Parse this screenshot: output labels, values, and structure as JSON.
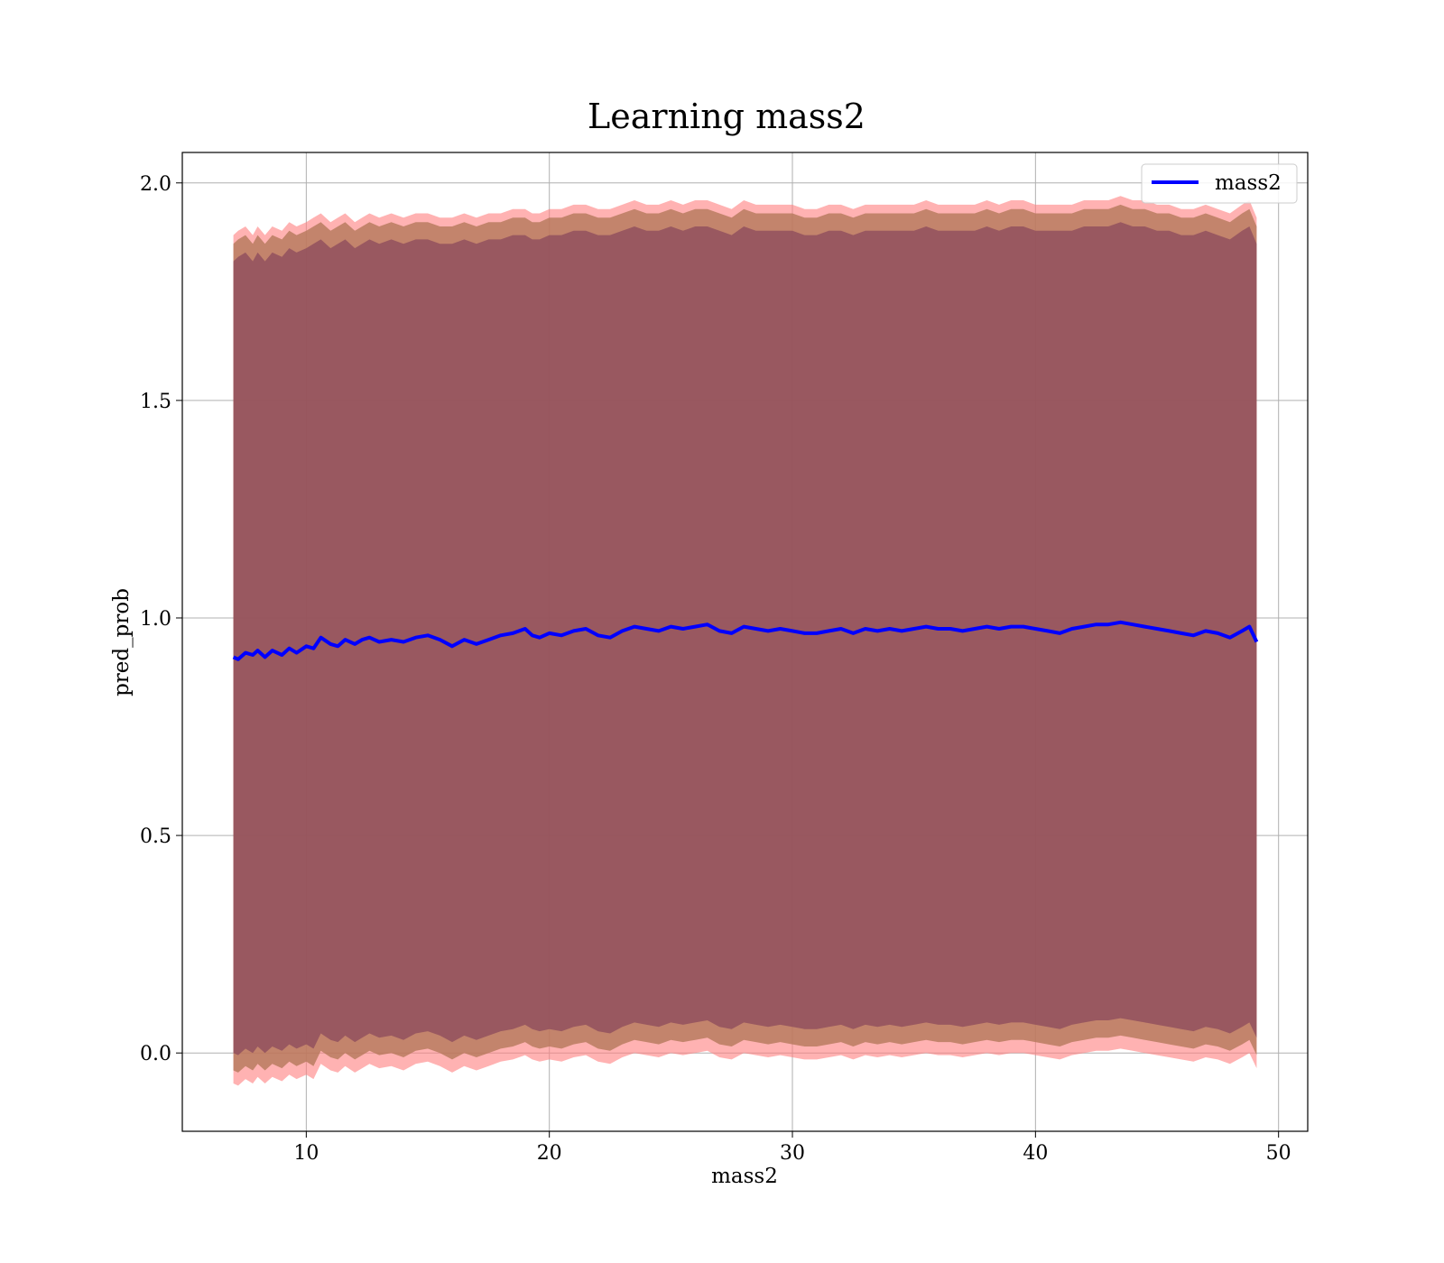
{
  "chart_data": {
    "type": "line",
    "title": "Learning mass2",
    "xlabel": "mass2",
    "ylabel": "pred_prob",
    "xlim": [
      4.9,
      51.2
    ],
    "ylim": [
      -0.18,
      2.07
    ],
    "xticks": [
      10,
      20,
      30,
      40,
      50
    ],
    "yticks": [
      0.0,
      0.5,
      1.0,
      1.5,
      2.0
    ],
    "xtick_labels": [
      "10",
      "20",
      "30",
      "40",
      "50"
    ],
    "ytick_labels": [
      "0.0",
      "0.5",
      "1.0",
      "1.5",
      "2.0"
    ],
    "grid": true,
    "legend": {
      "position": "top-right",
      "entries": [
        "mass2"
      ]
    },
    "colors": {
      "line": "#0000ff",
      "band_outer": "#ff7f7f",
      "band_middle": "#b4785a",
      "band_inner": "#8b4a5c",
      "grid": "#b0b0b0"
    },
    "series": [
      {
        "name": "mass2",
        "x": [
          7.0,
          7.2,
          7.5,
          7.8,
          8.0,
          8.3,
          8.6,
          9.0,
          9.3,
          9.6,
          10.0,
          10.3,
          10.6,
          11.0,
          11.3,
          11.6,
          12.0,
          12.3,
          12.6,
          13.0,
          13.5,
          14.0,
          14.5,
          15.0,
          15.5,
          16.0,
          16.5,
          17.0,
          17.5,
          18.0,
          18.5,
          19.0,
          19.3,
          19.6,
          20.0,
          20.5,
          21.0,
          21.5,
          22.0,
          22.5,
          23.0,
          23.5,
          24.0,
          24.5,
          25.0,
          25.5,
          26.0,
          26.5,
          27.0,
          27.5,
          28.0,
          28.5,
          29.0,
          29.5,
          30.0,
          30.5,
          31.0,
          31.5,
          32.0,
          32.5,
          33.0,
          33.5,
          34.0,
          34.5,
          35.0,
          35.5,
          36.0,
          36.5,
          37.0,
          37.5,
          38.0,
          38.5,
          39.0,
          39.5,
          40.0,
          40.5,
          41.0,
          41.5,
          42.0,
          42.5,
          43.0,
          43.5,
          44.0,
          44.5,
          45.0,
          45.5,
          46.0,
          46.5,
          47.0,
          47.5,
          48.0,
          48.5,
          48.8,
          49.1
        ],
        "mean": [
          0.91,
          0.905,
          0.92,
          0.915,
          0.925,
          0.91,
          0.925,
          0.915,
          0.93,
          0.92,
          0.935,
          0.93,
          0.955,
          0.94,
          0.935,
          0.95,
          0.94,
          0.95,
          0.955,
          0.945,
          0.95,
          0.945,
          0.955,
          0.96,
          0.95,
          0.935,
          0.95,
          0.94,
          0.95,
          0.96,
          0.965,
          0.975,
          0.96,
          0.955,
          0.965,
          0.96,
          0.97,
          0.975,
          0.96,
          0.955,
          0.97,
          0.98,
          0.975,
          0.97,
          0.98,
          0.975,
          0.98,
          0.985,
          0.97,
          0.965,
          0.98,
          0.975,
          0.97,
          0.975,
          0.97,
          0.965,
          0.965,
          0.97,
          0.975,
          0.965,
          0.975,
          0.97,
          0.975,
          0.97,
          0.975,
          0.98,
          0.975,
          0.975,
          0.97,
          0.975,
          0.98,
          0.975,
          0.98,
          0.98,
          0.975,
          0.97,
          0.965,
          0.975,
          0.98,
          0.985,
          0.985,
          0.99,
          0.985,
          0.98,
          0.975,
          0.97,
          0.965,
          0.96,
          0.97,
          0.965,
          0.955,
          0.97,
          0.98,
          0.945
        ],
        "band_outer_upper": [
          1.88,
          1.89,
          1.9,
          1.88,
          1.9,
          1.88,
          1.9,
          1.89,
          1.91,
          1.9,
          1.91,
          1.92,
          1.93,
          1.91,
          1.92,
          1.93,
          1.91,
          1.92,
          1.93,
          1.92,
          1.93,
          1.92,
          1.93,
          1.93,
          1.92,
          1.92,
          1.93,
          1.92,
          1.93,
          1.93,
          1.94,
          1.94,
          1.93,
          1.93,
          1.94,
          1.94,
          1.95,
          1.95,
          1.94,
          1.94,
          1.95,
          1.96,
          1.95,
          1.95,
          1.96,
          1.95,
          1.96,
          1.96,
          1.95,
          1.94,
          1.96,
          1.95,
          1.95,
          1.95,
          1.95,
          1.94,
          1.94,
          1.95,
          1.95,
          1.94,
          1.95,
          1.95,
          1.95,
          1.95,
          1.95,
          1.96,
          1.95,
          1.95,
          1.95,
          1.95,
          1.96,
          1.95,
          1.96,
          1.96,
          1.95,
          1.95,
          1.95,
          1.95,
          1.96,
          1.96,
          1.96,
          1.97,
          1.96,
          1.96,
          1.95,
          1.95,
          1.94,
          1.94,
          1.95,
          1.94,
          1.93,
          1.95,
          1.96,
          1.92
        ],
        "band_outer_lower": [
          -0.07,
          -0.075,
          -0.06,
          -0.07,
          -0.055,
          -0.07,
          -0.055,
          -0.065,
          -0.05,
          -0.06,
          -0.05,
          -0.06,
          -0.025,
          -0.04,
          -0.045,
          -0.03,
          -0.045,
          -0.035,
          -0.025,
          -0.035,
          -0.03,
          -0.04,
          -0.025,
          -0.02,
          -0.03,
          -0.045,
          -0.03,
          -0.04,
          -0.03,
          -0.02,
          -0.015,
          -0.005,
          -0.015,
          -0.02,
          -0.015,
          -0.02,
          -0.01,
          -0.005,
          -0.02,
          -0.025,
          -0.01,
          0.0,
          -0.005,
          -0.01,
          0.0,
          -0.005,
          0.0,
          0.005,
          -0.01,
          -0.015,
          0.0,
          -0.005,
          -0.01,
          -0.005,
          -0.01,
          -0.015,
          -0.015,
          -0.01,
          -0.005,
          -0.015,
          -0.005,
          -0.01,
          -0.005,
          -0.01,
          -0.005,
          0.0,
          -0.005,
          -0.005,
          -0.01,
          -0.005,
          0.0,
          -0.005,
          0.0,
          0.0,
          -0.005,
          -0.01,
          -0.015,
          -0.005,
          0.0,
          0.005,
          0.005,
          0.01,
          0.005,
          0.0,
          -0.005,
          -0.01,
          -0.015,
          -0.02,
          -0.01,
          -0.015,
          -0.025,
          -0.01,
          0.0,
          -0.035
        ],
        "band_middle_upper": [
          1.86,
          1.87,
          1.88,
          1.86,
          1.88,
          1.86,
          1.88,
          1.87,
          1.89,
          1.88,
          1.89,
          1.9,
          1.91,
          1.89,
          1.9,
          1.91,
          1.89,
          1.9,
          1.91,
          1.9,
          1.91,
          1.9,
          1.91,
          1.91,
          1.9,
          1.9,
          1.91,
          1.9,
          1.91,
          1.91,
          1.92,
          1.92,
          1.91,
          1.91,
          1.92,
          1.92,
          1.93,
          1.93,
          1.92,
          1.92,
          1.93,
          1.94,
          1.93,
          1.93,
          1.94,
          1.93,
          1.94,
          1.94,
          1.93,
          1.92,
          1.94,
          1.93,
          1.93,
          1.93,
          1.93,
          1.92,
          1.92,
          1.93,
          1.93,
          1.92,
          1.93,
          1.93,
          1.93,
          1.93,
          1.93,
          1.94,
          1.93,
          1.93,
          1.93,
          1.93,
          1.94,
          1.93,
          1.94,
          1.94,
          1.93,
          1.93,
          1.93,
          1.93,
          1.94,
          1.94,
          1.94,
          1.95,
          1.94,
          1.94,
          1.93,
          1.93,
          1.92,
          1.92,
          1.93,
          1.92,
          1.91,
          1.93,
          1.94,
          1.9
        ],
        "band_middle_lower": [
          -0.04,
          -0.045,
          -0.03,
          -0.04,
          -0.025,
          -0.04,
          -0.025,
          -0.035,
          -0.02,
          -0.03,
          -0.02,
          -0.03,
          0.005,
          -0.01,
          -0.015,
          0.0,
          -0.015,
          -0.005,
          0.005,
          -0.005,
          0.0,
          -0.01,
          0.005,
          0.01,
          0.0,
          -0.015,
          0.0,
          -0.01,
          0.0,
          0.01,
          0.015,
          0.025,
          0.015,
          0.01,
          0.015,
          0.01,
          0.02,
          0.025,
          0.01,
          0.005,
          0.02,
          0.03,
          0.025,
          0.02,
          0.03,
          0.025,
          0.03,
          0.035,
          0.02,
          0.015,
          0.03,
          0.025,
          0.02,
          0.025,
          0.02,
          0.015,
          0.015,
          0.02,
          0.025,
          0.015,
          0.025,
          0.02,
          0.025,
          0.02,
          0.025,
          0.03,
          0.025,
          0.025,
          0.02,
          0.025,
          0.03,
          0.025,
          0.03,
          0.03,
          0.025,
          0.02,
          0.015,
          0.025,
          0.03,
          0.035,
          0.035,
          0.04,
          0.035,
          0.03,
          0.025,
          0.02,
          0.015,
          0.01,
          0.02,
          0.015,
          0.005,
          0.02,
          0.03,
          -0.005
        ],
        "band_inner_upper": [
          1.82,
          1.83,
          1.84,
          1.82,
          1.84,
          1.82,
          1.84,
          1.83,
          1.85,
          1.84,
          1.85,
          1.86,
          1.87,
          1.85,
          1.86,
          1.87,
          1.85,
          1.86,
          1.87,
          1.86,
          1.87,
          1.86,
          1.87,
          1.87,
          1.86,
          1.86,
          1.87,
          1.86,
          1.87,
          1.87,
          1.88,
          1.88,
          1.87,
          1.87,
          1.88,
          1.88,
          1.89,
          1.89,
          1.88,
          1.88,
          1.89,
          1.9,
          1.89,
          1.89,
          1.9,
          1.89,
          1.9,
          1.9,
          1.89,
          1.88,
          1.9,
          1.89,
          1.89,
          1.89,
          1.89,
          1.88,
          1.88,
          1.89,
          1.89,
          1.88,
          1.89,
          1.89,
          1.89,
          1.89,
          1.89,
          1.9,
          1.89,
          1.89,
          1.89,
          1.89,
          1.9,
          1.89,
          1.9,
          1.9,
          1.89,
          1.89,
          1.89,
          1.89,
          1.9,
          1.9,
          1.9,
          1.91,
          1.9,
          1.9,
          1.89,
          1.89,
          1.88,
          1.88,
          1.89,
          1.88,
          1.87,
          1.89,
          1.9,
          1.86
        ],
        "band_inner_lower": [
          0.0,
          -0.005,
          0.01,
          0.0,
          0.015,
          0.0,
          0.015,
          0.005,
          0.02,
          0.01,
          0.02,
          0.01,
          0.045,
          0.03,
          0.025,
          0.04,
          0.025,
          0.035,
          0.045,
          0.035,
          0.04,
          0.03,
          0.045,
          0.05,
          0.04,
          0.025,
          0.04,
          0.03,
          0.04,
          0.05,
          0.055,
          0.065,
          0.055,
          0.05,
          0.055,
          0.05,
          0.06,
          0.065,
          0.05,
          0.045,
          0.06,
          0.07,
          0.065,
          0.06,
          0.07,
          0.065,
          0.07,
          0.075,
          0.06,
          0.055,
          0.07,
          0.065,
          0.06,
          0.065,
          0.06,
          0.055,
          0.055,
          0.06,
          0.065,
          0.055,
          0.065,
          0.06,
          0.065,
          0.06,
          0.065,
          0.07,
          0.065,
          0.065,
          0.06,
          0.065,
          0.07,
          0.065,
          0.07,
          0.07,
          0.065,
          0.06,
          0.055,
          0.065,
          0.07,
          0.075,
          0.075,
          0.08,
          0.075,
          0.07,
          0.065,
          0.06,
          0.055,
          0.05,
          0.06,
          0.055,
          0.045,
          0.06,
          0.07,
          0.035
        ]
      }
    ]
  }
}
